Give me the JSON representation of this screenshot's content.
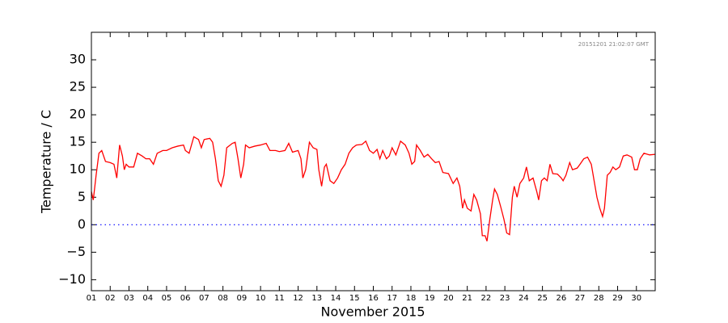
{
  "chart_data": {
    "type": "line",
    "xlabel": "November 2015",
    "ylabel": "Temperature / C",
    "annotation": "20151201 21:02:07 GMT",
    "x": [
      1.0,
      1.1,
      1.25,
      1.4,
      1.55,
      1.75,
      2.0,
      2.2,
      2.35,
      2.5,
      2.65,
      2.75,
      2.85,
      3.0,
      3.25,
      3.45,
      3.7,
      3.9,
      4.1,
      4.3,
      4.5,
      4.8,
      5.0,
      5.3,
      5.6,
      5.9,
      6.0,
      6.2,
      6.45,
      6.7,
      6.85,
      7.0,
      7.3,
      7.45,
      7.6,
      7.75,
      7.9,
      8.05,
      8.2,
      8.5,
      8.65,
      8.8,
      8.95,
      9.1,
      9.2,
      9.4,
      9.7,
      10.0,
      10.3,
      10.5,
      10.8,
      11.0,
      11.3,
      11.5,
      11.7,
      12.0,
      12.15,
      12.25,
      12.4,
      12.6,
      12.8,
      13.0,
      13.1,
      13.25,
      13.4,
      13.5,
      13.7,
      13.9,
      14.1,
      14.3,
      14.5,
      14.7,
      14.9,
      15.1,
      15.4,
      15.6,
      15.8,
      16.0,
      16.2,
      16.35,
      16.5,
      16.7,
      16.85,
      17.0,
      17.2,
      17.45,
      17.7,
      17.9,
      18.05,
      18.2,
      18.3,
      18.5,
      18.7,
      18.9,
      19.1,
      19.3,
      19.5,
      19.7,
      20.0,
      20.25,
      20.45,
      20.6,
      20.75,
      20.85,
      21.0,
      21.2,
      21.35,
      21.5,
      21.7,
      21.8,
      21.95,
      22.05,
      22.2,
      22.35,
      22.45,
      22.6,
      22.8,
      22.95,
      23.1,
      23.25,
      23.4,
      23.5,
      23.65,
      23.8,
      24.0,
      24.15,
      24.3,
      24.5,
      24.7,
      24.8,
      24.95,
      25.1,
      25.25,
      25.4,
      25.55,
      25.8,
      26.0,
      26.1,
      26.25,
      26.45,
      26.6,
      26.85,
      27.0,
      27.2,
      27.4,
      27.6,
      27.75,
      27.9,
      28.05,
      28.2,
      28.3,
      28.45,
      28.6,
      28.75,
      28.9,
      29.1,
      29.3,
      29.5,
      29.75,
      29.9,
      30.05,
      30.2,
      30.4,
      30.7,
      31.0
    ],
    "series": [
      {
        "color": "#ff0000",
        "values": [
          6,
          4.5,
          9,
          13,
          13.5,
          11.5,
          11.3,
          11,
          8.5,
          14.5,
          12.5,
          10,
          11,
          10.5,
          10.5,
          13,
          12.5,
          12,
          12,
          11,
          13,
          13.5,
          13.5,
          14,
          14.3,
          14.5,
          13.5,
          13,
          16,
          15.5,
          14,
          15.5,
          15.7,
          15,
          12,
          8,
          7,
          9,
          14,
          14.8,
          15,
          12,
          8.5,
          11,
          14.5,
          14,
          14.3,
          14.5,
          14.8,
          13.5,
          13.5,
          13.3,
          13.5,
          14.8,
          13.2,
          13.5,
          12,
          8.5,
          10,
          15,
          14,
          13.7,
          10,
          7,
          10.5,
          11,
          8,
          7.5,
          8.5,
          10,
          11,
          13,
          14,
          14.5,
          14.6,
          15.2,
          13.5,
          13,
          13.7,
          12,
          13.5,
          12,
          12.5,
          14,
          12.7,
          15.2,
          14.5,
          13,
          11,
          11.5,
          14.5,
          13.5,
          12.3,
          12.8,
          12,
          11.3,
          11.5,
          9.5,
          9.3,
          7.5,
          8.5,
          7,
          3,
          4.5,
          3,
          2.5,
          5.5,
          4.5,
          2,
          -2,
          -2,
          -3,
          1,
          4.5,
          6.5,
          5.5,
          3,
          1,
          -1.5,
          -1.8,
          5,
          7,
          5,
          7.5,
          8.5,
          10.5,
          8,
          8.5,
          6,
          4.5,
          8,
          8.5,
          8,
          11,
          9.3,
          9.2,
          8.5,
          8,
          9,
          11.3,
          10,
          10.3,
          11,
          12,
          12.3,
          11,
          8,
          5,
          3,
          1.5,
          3,
          9,
          9.5,
          10.5,
          10,
          10.5,
          12.5,
          12.7,
          12.3,
          10,
          10,
          12,
          13,
          12.7,
          12.8
        ]
      }
    ],
    "reference_line": {
      "value": 0,
      "color": "#0000ff"
    },
    "xlim": [
      1,
      31
    ],
    "ylim": [
      -12,
      35
    ],
    "xticks": [
      {
        "value": 1,
        "label": "01"
      },
      {
        "value": 2,
        "label": "02"
      },
      {
        "value": 3,
        "label": "03"
      },
      {
        "value": 4,
        "label": "04"
      },
      {
        "value": 5,
        "label": "05"
      },
      {
        "value": 6,
        "label": "06"
      },
      {
        "value": 7,
        "label": "07"
      },
      {
        "value": 8,
        "label": "08"
      },
      {
        "value": 9,
        "label": "09"
      },
      10,
      11,
      12,
      13,
      14,
      15,
      16,
      17,
      18,
      19,
      20,
      21,
      22,
      23,
      24,
      25,
      26,
      27,
      28,
      29,
      30
    ],
    "yticks": [
      {
        "value": -10,
        "label": "−10"
      },
      {
        "value": -5,
        "label": "−5"
      },
      0,
      5,
      10,
      15,
      20,
      25,
      30
    ]
  }
}
